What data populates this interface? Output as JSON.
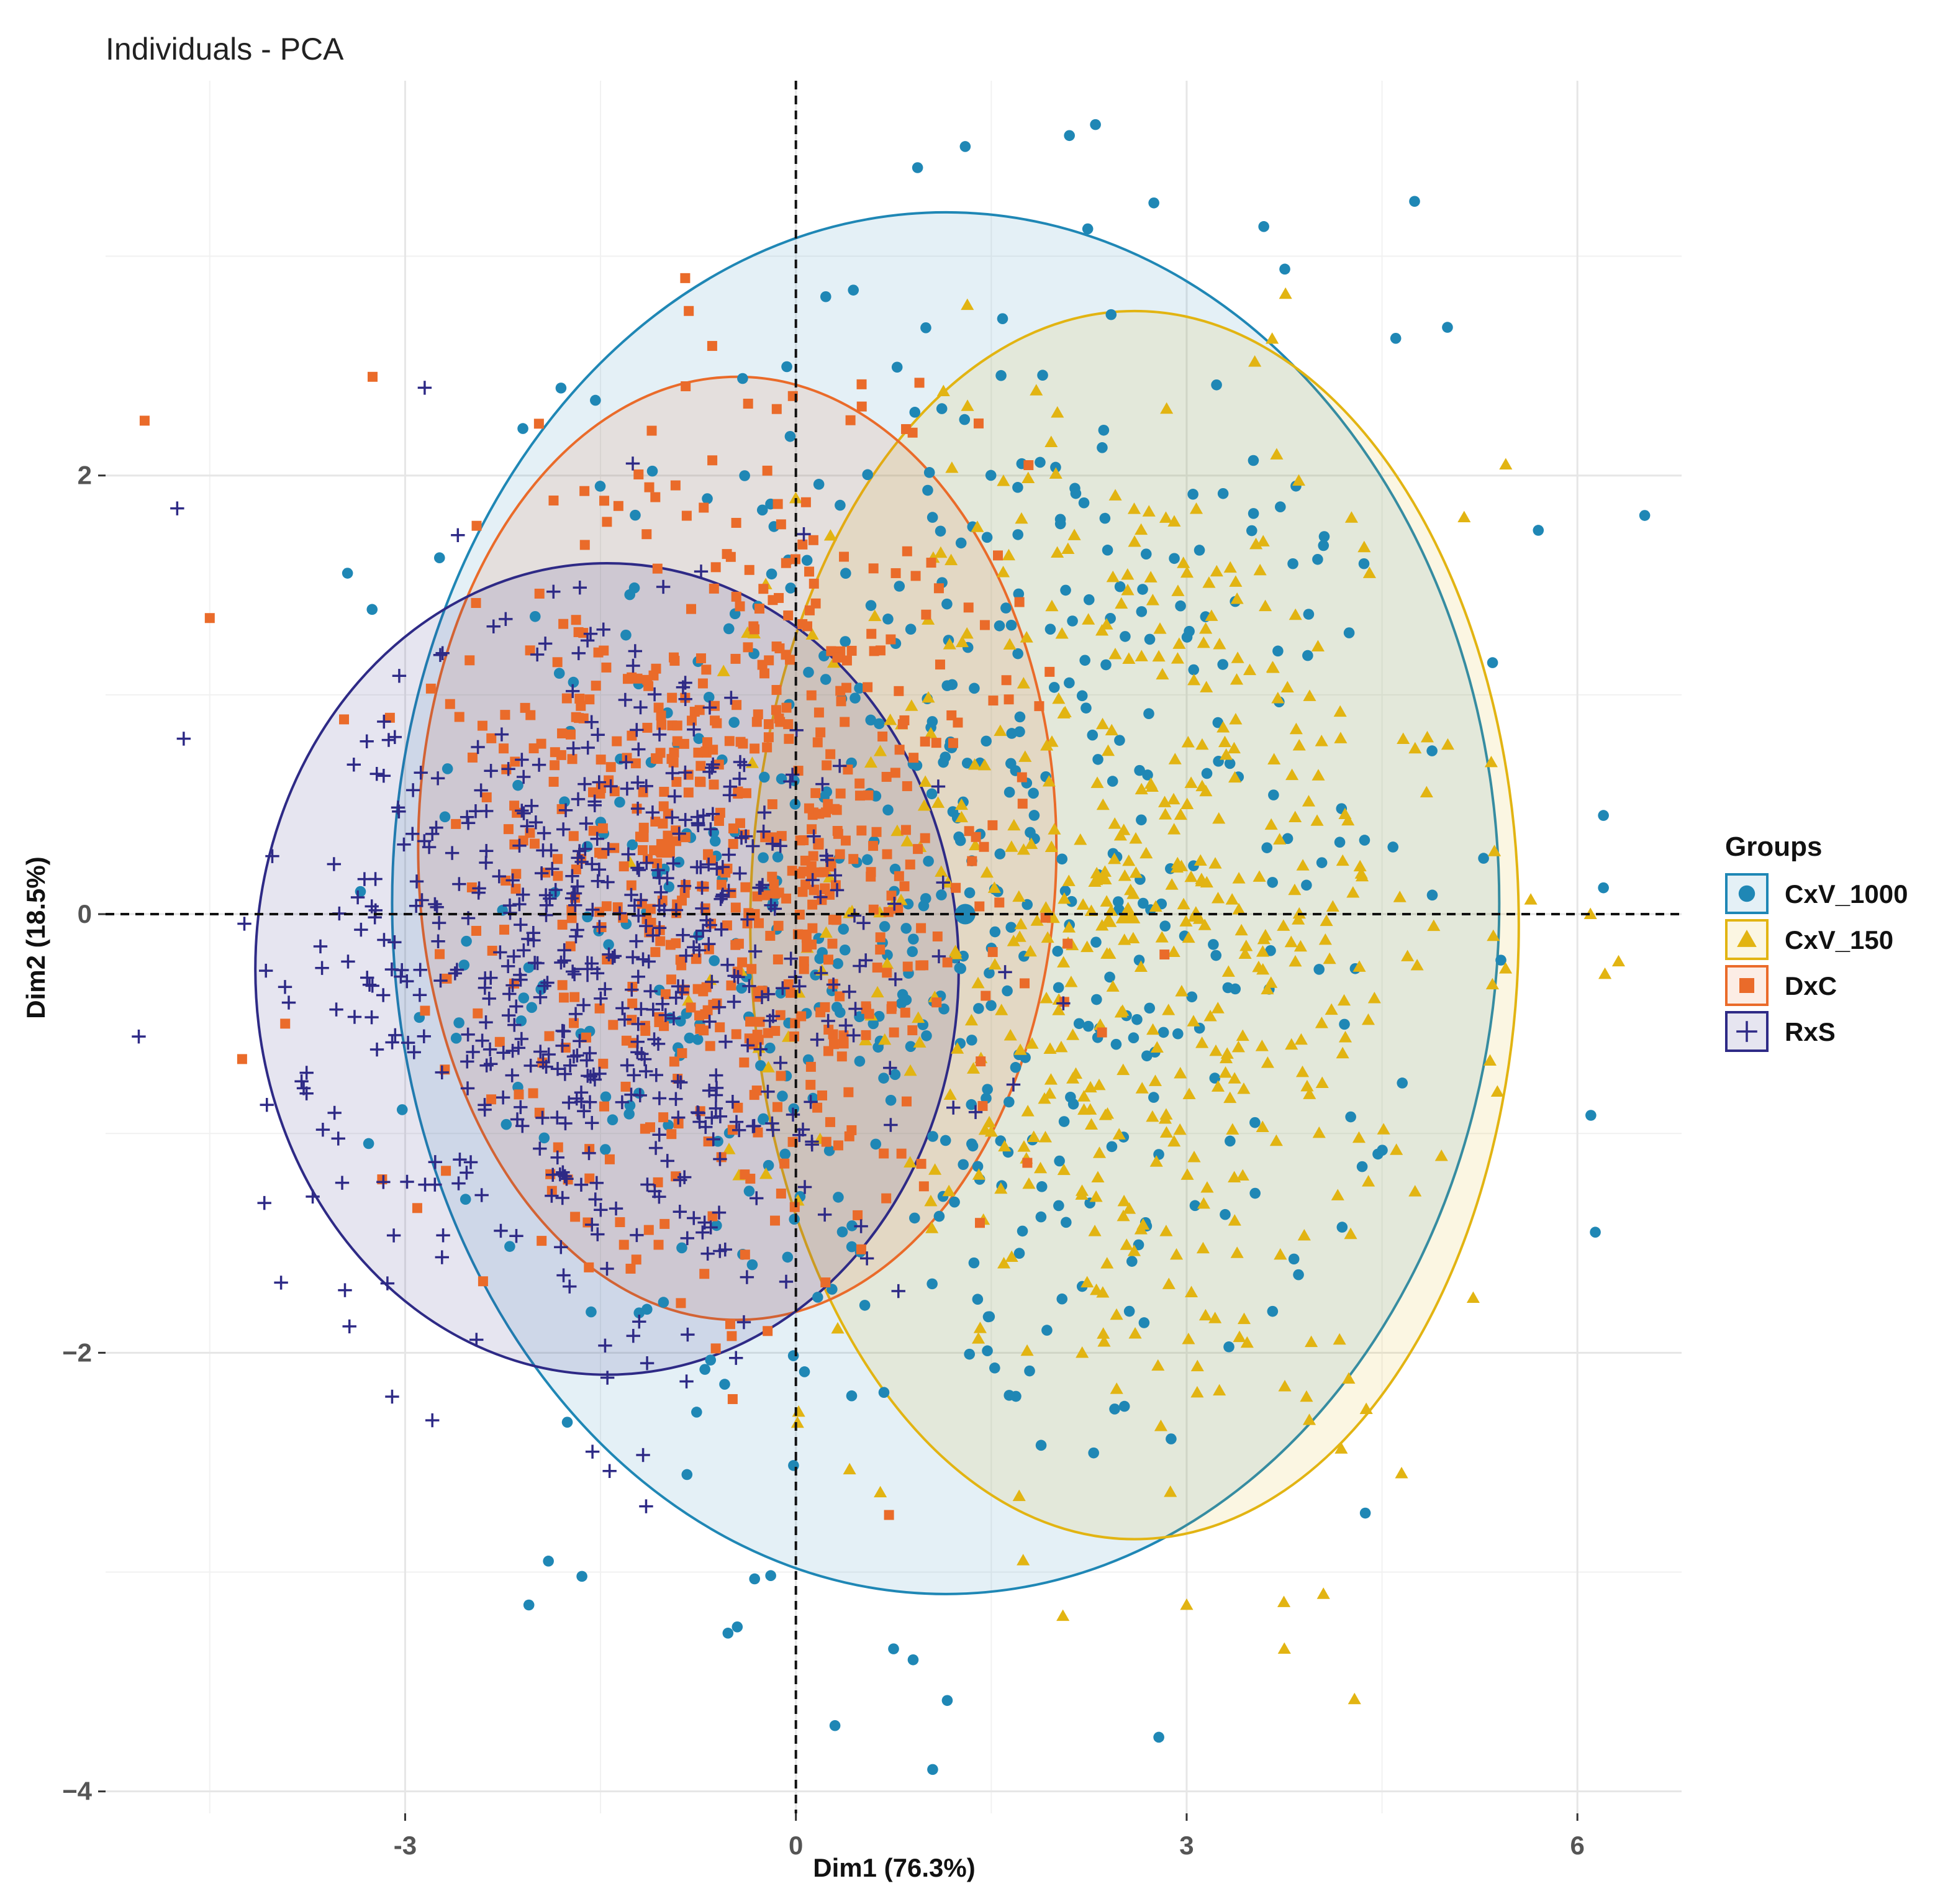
{
  "chart_data": {
    "type": "scatter",
    "title": "Individuals - PCA",
    "xlabel": "Dim1 (76.3%)",
    "ylabel": "Dim2 (18.5%)",
    "xlim": [
      -5.3,
      6.8
    ],
    "ylim": [
      -4.1,
      3.8
    ],
    "x_ticks": [
      -3,
      0,
      3,
      6
    ],
    "x_tick_labels": [
      "-3",
      "0",
      "3",
      "6"
    ],
    "y_ticks": [
      -4,
      -2,
      0,
      2
    ],
    "y_tick_labels": [
      "−4",
      "−2",
      "0",
      "2"
    ],
    "grid": true,
    "reference_lines": {
      "x": 0,
      "y": 0,
      "style": "dashed"
    },
    "legend": {
      "title": "Groups",
      "placement": "right",
      "entries": [
        "CxV_1000",
        "CxV_150",
        "DxC",
        "RxS"
      ]
    },
    "series": [
      {
        "name": "CxV_1000",
        "marker": "circle",
        "color": "#1f87b5",
        "ellipse": {
          "center": [
            1.15,
            0.05
          ],
          "rx": 4.25,
          "ry": 3.15
        },
        "center": [
          1.3,
          0.0
        ]
      },
      {
        "name": "CxV_150",
        "marker": "triangle",
        "color": "#e2b412",
        "ellipse": {
          "center": [
            2.6,
            -0.05
          ],
          "rx": 2.95,
          "ry": 2.8
        },
        "center": [
          2.55,
          0.0
        ]
      },
      {
        "name": "DxC",
        "marker": "square",
        "color": "#ea6b2a",
        "ellipse": {
          "center": [
            -0.45,
            0.3
          ],
          "rx": 2.45,
          "ry": 2.15
        },
        "center": [
          -1.0,
          0.3
        ]
      },
      {
        "name": "RxS",
        "marker": "plus",
        "color": "#2e2a86",
        "ellipse": {
          "center": [
            -1.45,
            -0.25
          ],
          "rx": 2.7,
          "ry": 1.85
        },
        "center": [
          -1.6,
          -0.25
        ]
      }
    ],
    "outlier_points": [
      {
        "series": "CxV_1000",
        "x": 1.3,
        "y": 3.5
      },
      {
        "series": "CxV_1000",
        "x": 2.1,
        "y": 3.55
      },
      {
        "series": "CxV_1000",
        "x": 2.3,
        "y": 3.6
      },
      {
        "series": "CxV_1000",
        "x": 4.75,
        "y": 3.25
      },
      {
        "series": "CxV_1000",
        "x": 6.2,
        "y": 0.45
      },
      {
        "series": "CxV_1000",
        "x": 6.2,
        "y": 0.12
      },
      {
        "series": "CxV_1000",
        "x": 5.7,
        "y": 1.75
      },
      {
        "series": "CxV_1000",
        "x": 1.05,
        "y": -3.9
      },
      {
        "series": "CxV_1000",
        "x": 0.3,
        "y": -3.7
      },
      {
        "series": "CxV_1000",
        "x": -2.05,
        "y": -3.15
      },
      {
        "series": "CxV_1000",
        "x": -1.9,
        "y": -2.95
      },
      {
        "series": "CxV_1000",
        "x": -0.45,
        "y": -3.25
      },
      {
        "series": "CxV_1000",
        "x": 0.75,
        "y": -3.35
      },
      {
        "series": "CxV_1000",
        "x": 0.9,
        "y": -3.4
      },
      {
        "series": "CxV_150",
        "x": 5.45,
        "y": 2.05
      },
      {
        "series": "CxV_150",
        "x": 6.1,
        "y": 0.0
      },
      {
        "series": "CxV_150",
        "x": 3.75,
        "y": -3.35
      },
      {
        "series": "CxV_150",
        "x": 4.05,
        "y": -3.1
      },
      {
        "series": "CxV_150",
        "x": 3.0,
        "y": -3.15
      },
      {
        "series": "CxV_150",
        "x": 2.05,
        "y": -3.2
      },
      {
        "series": "CxV_150",
        "x": 4.65,
        "y": -2.55
      },
      {
        "series": "CxV_150",
        "x": 5.2,
        "y": -1.75
      },
      {
        "series": "DxC",
        "x": -5.0,
        "y": 2.25
      },
      {
        "series": "DxC",
        "x": -0.85,
        "y": 2.9
      },
      {
        "series": "DxC",
        "x": -3.25,
        "y": 2.45
      },
      {
        "series": "DxC",
        "x": -4.5,
        "y": 1.35
      },
      {
        "series": "RxS",
        "x": -2.85,
        "y": 2.4
      },
      {
        "series": "RxS",
        "x": -4.75,
        "y": 1.85
      },
      {
        "series": "RxS",
        "x": -4.7,
        "y": 0.8
      },
      {
        "series": "RxS",
        "x": -3.1,
        "y": -2.2
      },
      {
        "series": "RxS",
        "x": -1.15,
        "y": -2.7
      }
    ]
  }
}
